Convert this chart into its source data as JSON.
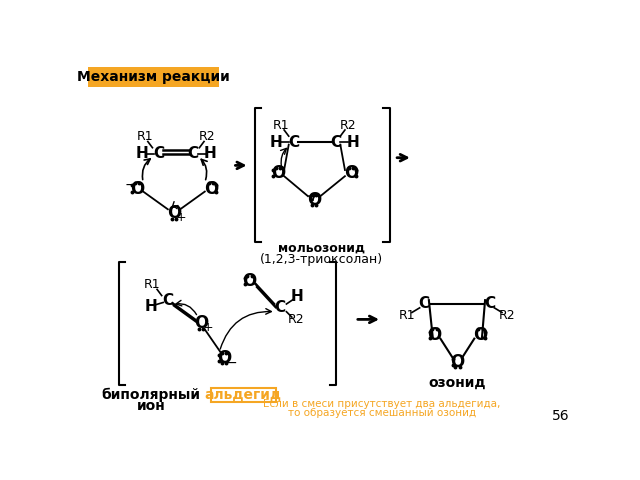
{
  "title_text": "Механизм реакции",
  "title_bg": "#F5A623",
  "title_color": "#000000",
  "bg_color": "#FFFFFF",
  "page_number": "56",
  "footer_text_line1": "Если в смеси присутствует два альдегида,",
  "footer_text_line2": "то образуется смешанный озонид",
  "footer_color": "#F5A623",
  "black": "#000000",
  "orange": "#F5A623"
}
